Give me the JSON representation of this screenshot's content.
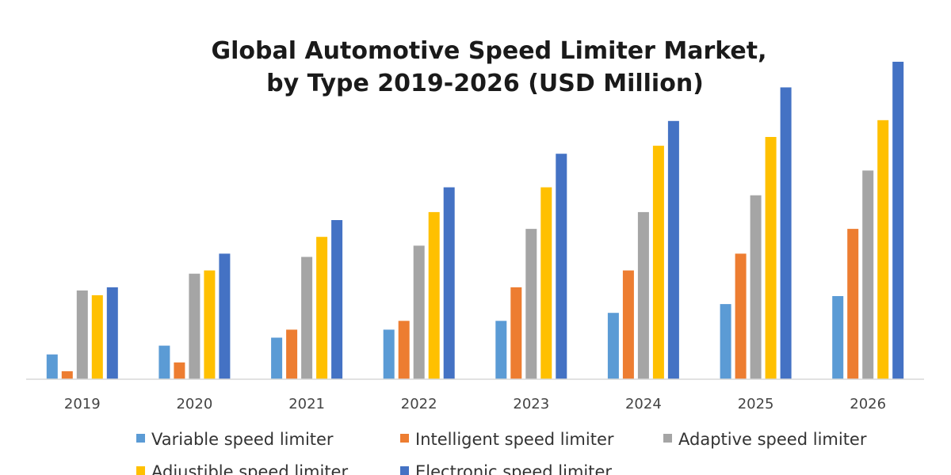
{
  "chart_data": {
    "type": "bar",
    "title_lines": [
      "Global Automotive Speed Limiter Market,",
      "by Type 2019-2026 (USD Million)"
    ],
    "xlabel": "",
    "ylabel": "",
    "categories": [
      "2019",
      "2020",
      "2021",
      "2022",
      "2023",
      "2024",
      "2025",
      "2026"
    ],
    "ylim": [
      0,
      400
    ],
    "grid": false,
    "legend_position": "bottom",
    "series": [
      {
        "name": "Variable speed limiter",
        "color": "#5B9BD5",
        "values": [
          31,
          42,
          52,
          62,
          73,
          83,
          94,
          104
        ]
      },
      {
        "name": "Intelligent speed limiter",
        "color": "#ED7D31",
        "values": [
          10,
          21,
          62,
          73,
          115,
          136,
          157,
          188
        ]
      },
      {
        "name": "Adaptive speed limiter",
        "color": "#A5A5A5",
        "values": [
          111,
          132,
          153,
          167,
          188,
          209,
          230,
          261
        ]
      },
      {
        "name": "Adjustible speed limiter",
        "color": "#FFC000",
        "values": [
          105,
          136,
          178,
          209,
          240,
          292,
          303,
          324
        ]
      },
      {
        "name": "Electronic speed limiter",
        "color": "#4472C4",
        "values": [
          115,
          157,
          199,
          240,
          282,
          323,
          365,
          397
        ]
      }
    ]
  }
}
